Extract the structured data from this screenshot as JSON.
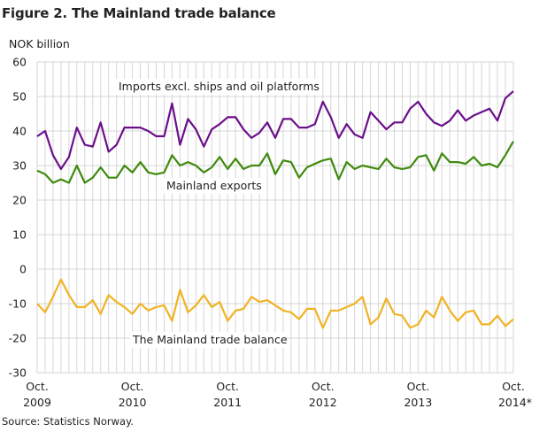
{
  "chart_data": {
    "type": "line",
    "title": "Figure 2. The Mainland trade balance",
    "ylabel": "NOK billion",
    "source": "Source: Statistics Norway.",
    "ylim": [
      -30,
      60
    ],
    "yticks": [
      60,
      50,
      40,
      30,
      20,
      10,
      0,
      -10,
      -20,
      -30
    ],
    "x_start": "2009-10",
    "x_end": "2014-10",
    "frequency": "monthly",
    "xtick_labels": [
      {
        "month": "Oct.",
        "year": "2009"
      },
      {
        "month": "Oct.",
        "year": "2010"
      },
      {
        "month": "Oct.",
        "year": "2011"
      },
      {
        "month": "Oct.",
        "year": "2012"
      },
      {
        "month": "Oct.",
        "year": "2013"
      },
      {
        "month": "Oct.",
        "year": "2014*"
      }
    ],
    "grid": true,
    "series": [
      {
        "name": "Imports excl. ships and oil platforms",
        "color": "#6b0f8a",
        "values": [
          38.5,
          40,
          33,
          29,
          32.5,
          41,
          36,
          35.5,
          42.5,
          34,
          36,
          41,
          41,
          41,
          40,
          38.5,
          38.5,
          48,
          36,
          43.5,
          40.5,
          35.5,
          40.5,
          42,
          44,
          44,
          40.5,
          38,
          39.5,
          42.5,
          38,
          43.5,
          43.5,
          41,
          41,
          42,
          48.5,
          44,
          38,
          42,
          39,
          38,
          45.5,
          43,
          40.5,
          42.5,
          42.5,
          46.5,
          48.5,
          45,
          42.5,
          41.5,
          43,
          46,
          43,
          44.5,
          45.5,
          46.5,
          43,
          49.5,
          51.5
        ]
      },
      {
        "name": "Mainland exports",
        "color": "#3f8a0e",
        "values": [
          28.5,
          27.5,
          25,
          26,
          25,
          30,
          25,
          26.5,
          29.5,
          26.5,
          26.5,
          30,
          28,
          31,
          28,
          27.5,
          28,
          33,
          30,
          31,
          30,
          28,
          29.5,
          32.5,
          29,
          32,
          29,
          30,
          30,
          33.5,
          27.5,
          31.5,
          31,
          26.5,
          29.5,
          30.5,
          31.5,
          32,
          26,
          31,
          29,
          30,
          29.5,
          29,
          32,
          29.5,
          29,
          29.5,
          32.5,
          33,
          28.5,
          33.5,
          31,
          31,
          30.5,
          32.5,
          30,
          30.5,
          29.5,
          33,
          37
        ]
      },
      {
        "name": "The Mainland trade balance",
        "color": "#f0b323",
        "values": [
          -10,
          -12.5,
          -8,
          -3,
          -7.5,
          -11,
          -11,
          -9,
          -13,
          -7.5,
          -9.5,
          -11,
          -13,
          -10,
          -12,
          -11,
          -10.5,
          -15,
          -6,
          -12.5,
          -10.5,
          -7.5,
          -11,
          -9.5,
          -15,
          -12,
          -11.5,
          -8,
          -9.5,
          -9,
          -10.5,
          -12,
          -12.5,
          -14.5,
          -11.5,
          -11.5,
          -17,
          -12,
          -12,
          -11,
          -10,
          -8,
          -16,
          -14,
          -8.5,
          -13,
          -13.5,
          -17,
          -16,
          -12,
          -14,
          -8,
          -12,
          -15,
          -12.5,
          -12,
          -16,
          -16,
          -13.5,
          -16.5,
          -14.5
        ]
      }
    ]
  }
}
